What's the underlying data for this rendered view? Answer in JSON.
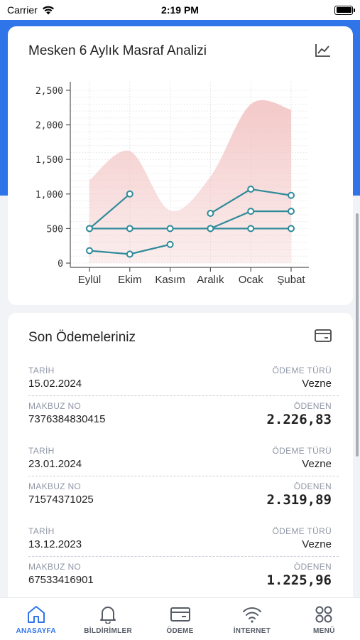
{
  "status_bar": {
    "carrier": "Carrier",
    "time": "2:19 PM"
  },
  "chart_card": {
    "title": "Mesken 6 Aylık Masraf Analizi",
    "icon": "line-chart-icon"
  },
  "chart_data": {
    "type": "line",
    "categories": [
      "Eylül",
      "Ekim",
      "Kasım",
      "Aralık",
      "Ocak",
      "Şubat"
    ],
    "ylim": [
      0,
      2500
    ],
    "yticks": [
      "0",
      "500",
      "1,000",
      "1,500",
      "2,000",
      "2,500"
    ],
    "grid": true,
    "area": {
      "name": "",
      "color": "#f3c6c6",
      "values": [
        1200,
        1620,
        760,
        1250,
        2300,
        2220
      ]
    },
    "series": [
      {
        "color": "#2e8b9a",
        "values": [
          500,
          1000,
          null,
          720,
          1070,
          980
        ]
      },
      {
        "color": "#2e8b9a",
        "values": [
          500,
          500,
          500,
          500,
          500,
          500
        ]
      },
      {
        "color": "#2e8b9a",
        "values": [
          null,
          null,
          null,
          500,
          750,
          750
        ]
      },
      {
        "color": "#2e8b9a",
        "values": [
          180,
          130,
          270,
          null,
          null,
          null
        ]
      }
    ]
  },
  "payments_card": {
    "title": "Son Ödemeleriniz",
    "icon": "credit-card-icon",
    "labels": {
      "date": "TARİH",
      "type": "ÖDEME TÜRÜ",
      "receipt": "MAKBUZ NO",
      "paid": "ÖDENEN"
    },
    "items": [
      {
        "date": "15.02.2024",
        "type": "Vezne",
        "receipt": "7376384830415",
        "amount": "2.226,83"
      },
      {
        "date": "23.01.2024",
        "type": "Vezne",
        "receipt": "71574371025",
        "amount": "2.319,89"
      },
      {
        "date": "13.12.2023",
        "type": "Vezne",
        "receipt": "67533416901",
        "amount": "1.225,96"
      }
    ]
  },
  "tabbar": {
    "accent": "#2f74e8",
    "tabs": [
      {
        "label": "ANASAYFA",
        "icon": "home-icon",
        "active": true
      },
      {
        "label": "BİLDİRİMLER",
        "icon": "bell-icon",
        "active": false
      },
      {
        "label": "ÖDEME",
        "icon": "payment-card-icon",
        "active": false
      },
      {
        "label": "İNTERNET",
        "icon": "wifi-icon",
        "active": false
      },
      {
        "label": "MENÜ",
        "icon": "menu-grid-icon",
        "active": false
      }
    ]
  }
}
